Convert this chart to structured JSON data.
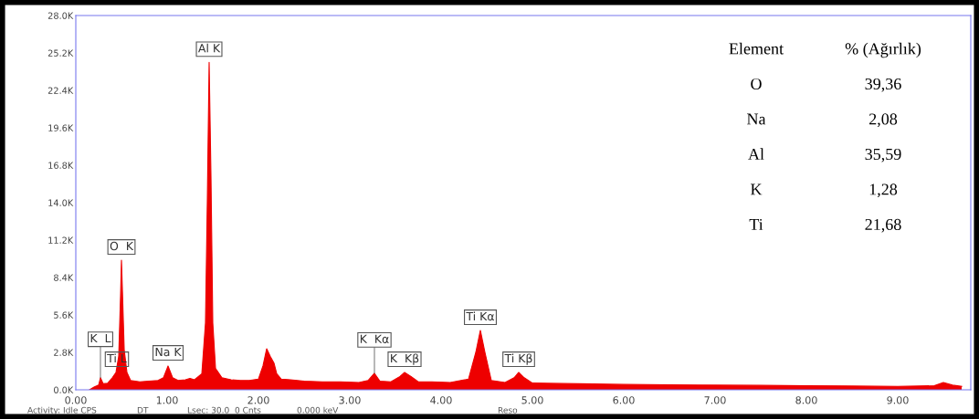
{
  "chart_data": {
    "type": "area",
    "x": [
      0.15,
      0.2,
      0.25,
      0.27,
      0.3,
      0.35,
      0.4,
      0.44,
      0.47,
      0.49,
      0.5,
      0.51,
      0.53,
      0.56,
      0.6,
      0.7,
      0.8,
      0.9,
      0.96,
      1.01,
      1.06,
      1.12,
      1.2,
      1.25,
      1.3,
      1.38,
      1.42,
      1.44,
      1.46,
      1.48,
      1.5,
      1.53,
      1.6,
      1.7,
      1.8,
      1.9,
      2.0,
      2.05,
      2.09,
      2.13,
      2.17,
      2.2,
      2.25,
      2.35,
      2.5,
      2.7,
      2.9,
      3.1,
      3.2,
      3.27,
      3.33,
      3.45,
      3.55,
      3.6,
      3.67,
      3.75,
      3.9,
      4.1,
      4.3,
      4.38,
      4.43,
      4.48,
      4.55,
      4.7,
      4.8,
      4.85,
      4.91,
      5.0,
      5.5,
      6.0,
      6.5,
      7.0,
      7.5,
      8.0,
      8.5,
      9.0,
      9.4,
      9.5,
      9.6,
      9.7
    ],
    "series": [
      {
        "color": "#ee0000",
        "values": [
          0,
          200,
          350,
          900,
          450,
          500,
          900,
          1300,
          2500,
          7000,
          9700,
          7500,
          3000,
          1300,
          700,
          600,
          650,
          700,
          900,
          1780,
          900,
          700,
          750,
          850,
          750,
          1200,
          5000,
          14000,
          24500,
          16000,
          5000,
          1600,
          900,
          750,
          700,
          700,
          800,
          1800,
          3070,
          2500,
          2000,
          1200,
          800,
          750,
          650,
          600,
          600,
          550,
          700,
          1230,
          650,
          600,
          1000,
          1300,
          1000,
          600,
          600,
          550,
          800,
          2800,
          4440,
          2800,
          700,
          550,
          900,
          1300,
          900,
          500,
          450,
          400,
          380,
          350,
          330,
          300,
          280,
          260,
          300,
          550,
          350,
          250
        ]
      }
    ],
    "xlim": [
      0,
      9.8
    ],
    "xticks": [
      {
        "value": 0,
        "label": "0.00"
      },
      {
        "value": 1,
        "label": "1.00"
      },
      {
        "value": 2,
        "label": "2.00"
      },
      {
        "value": 3,
        "label": "3.00"
      },
      {
        "value": 4,
        "label": "4.00"
      },
      {
        "value": 5,
        "label": "5.00"
      },
      {
        "value": 6,
        "label": "6.00"
      },
      {
        "value": 7,
        "label": "7.00"
      },
      {
        "value": 8,
        "label": "8.00"
      },
      {
        "value": 9,
        "label": "9.00"
      }
    ],
    "ylim": [
      0,
      28000
    ],
    "yticks": [
      {
        "value": 0,
        "label": "0.0K"
      },
      {
        "value": 2800,
        "label": "2.8K"
      },
      {
        "value": 5600,
        "label": "5.6K"
      },
      {
        "value": 8400,
        "label": "8.4K"
      },
      {
        "value": 11200,
        "label": "11.2K"
      },
      {
        "value": 14000,
        "label": "14.0K"
      },
      {
        "value": 16800,
        "label": "16.8K"
      },
      {
        "value": 19600,
        "label": "19.6K"
      },
      {
        "value": 22400,
        "label": "22.4K"
      },
      {
        "value": 25200,
        "label": "25.2K"
      },
      {
        "value": 28000,
        "label": "28.0K"
      }
    ],
    "grid": false,
    "annotations": [
      {
        "text": "Al K",
        "x": 1.46,
        "y": 24500
      },
      {
        "text": "O  K",
        "x": 0.5,
        "y": 9700
      },
      {
        "text": "Ti L",
        "x": 0.45,
        "y": 1300
      },
      {
        "text": "K  L",
        "x": 0.27,
        "y": 900
      },
      {
        "text": "Na K",
        "x": 1.01,
        "y": 1780
      },
      {
        "text": "K  Kβ",
        "x": 3.6,
        "y": 1300
      },
      {
        "text": "K  Kα",
        "x": 3.27,
        "y": 1230
      },
      {
        "text": "Ti Kα",
        "x": 4.43,
        "y": 4440
      },
      {
        "text": "Ti Kβ",
        "x": 4.85,
        "y": 1300
      },
      "Element",
      "% (Ağırlık)",
      "O",
      "39,36",
      "Na",
      "2,08",
      "Al",
      "35,59",
      "K",
      "1,28",
      "Ti",
      "21,68",
      "Activity: Idle CPS",
      "DT",
      "Lsec: 30.0  0 Cnts",
      "0.000 keV",
      "Reso"
    ]
  }
}
